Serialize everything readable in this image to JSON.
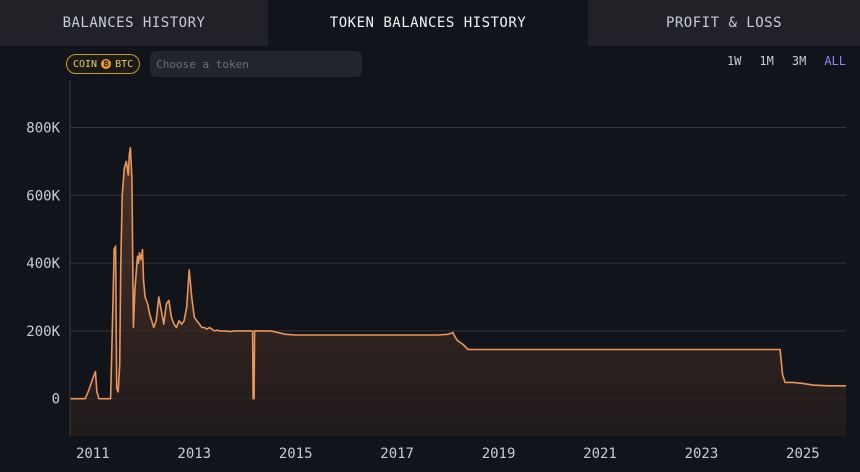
{
  "tabs": [
    {
      "label": "BALANCES HISTORY"
    },
    {
      "label": "TOKEN BALANCES HISTORY"
    },
    {
      "label": "PROFIT & LOSS"
    }
  ],
  "filter": {
    "pill_coin": "COIN",
    "pill_token": "BTC",
    "token_placeholder": "Choose a token"
  },
  "ranges": [
    "1W",
    "1M",
    "3M",
    "ALL"
  ],
  "active_range": "ALL",
  "colors": {
    "line": "#e8965a",
    "fill_top": "#5a3a2a",
    "grid": "#34363d",
    "active_range": "#8e86f5"
  },
  "chart_data": {
    "type": "area",
    "title": "",
    "xlabel": "",
    "ylabel": "",
    "x_ticks": [
      "2011",
      "2013",
      "2015",
      "2017",
      "2019",
      "2021",
      "2023",
      "2025"
    ],
    "y_ticks": [
      "0",
      "200K",
      "400K",
      "600K",
      "800K"
    ],
    "y_tick_values": [
      0,
      200000,
      400000,
      600000,
      800000
    ],
    "xlim": [
      2010.55,
      2025.85
    ],
    "ylim": [
      -110000,
      940000
    ],
    "grid": true,
    "series": [
      {
        "x": [
          2010.55,
          2010.85,
          2010.92,
          2011.0,
          2011.05,
          2011.08,
          2011.12,
          2011.14,
          2011.2,
          2011.35,
          2011.4,
          2011.42,
          2011.45,
          2011.47,
          2011.5,
          2011.53,
          2011.55,
          2011.58,
          2011.62,
          2011.66,
          2011.7,
          2011.72,
          2011.74,
          2011.77,
          2011.8,
          2011.83,
          2011.86,
          2011.88,
          2011.9,
          2011.92,
          2011.95,
          2011.98,
          2012.0,
          2012.03,
          2012.08,
          2012.12,
          2012.16,
          2012.2,
          2012.25,
          2012.3,
          2012.35,
          2012.4,
          2012.45,
          2012.5,
          2012.55,
          2012.6,
          2012.65,
          2012.7,
          2012.75,
          2012.8,
          2012.85,
          2012.9,
          2012.95,
          2013.0,
          2013.05,
          2013.1,
          2013.15,
          2013.2,
          2013.25,
          2013.3,
          2013.35,
          2013.4,
          2013.45,
          2013.5,
          2013.6,
          2013.7,
          2013.8,
          2013.9,
          2014.0,
          2014.05,
          2014.15,
          2014.16,
          2014.18,
          2014.19,
          2014.5,
          2014.8,
          2015.0,
          2016.0,
          2017.0,
          2017.5,
          2017.8,
          2018.0,
          2018.1,
          2018.15,
          2018.2,
          2018.3,
          2018.4,
          2018.5,
          2018.6,
          2019.0,
          2020.0,
          2021.0,
          2022.0,
          2023.0,
          2024.0,
          2024.55,
          2024.6,
          2024.65,
          2024.8,
          2025.0,
          2025.2,
          2025.5,
          2025.85
        ],
        "y": [
          0,
          0,
          25000,
          60000,
          80000,
          20000,
          0,
          0,
          0,
          0,
          300000,
          440000,
          450000,
          30000,
          20000,
          100000,
          380000,
          600000,
          680000,
          700000,
          660000,
          720000,
          740000,
          650000,
          210000,
          320000,
          380000,
          420000,
          400000,
          430000,
          410000,
          440000,
          350000,
          300000,
          280000,
          250000,
          230000,
          210000,
          230000,
          300000,
          260000,
          220000,
          280000,
          290000,
          240000,
          220000,
          210000,
          230000,
          220000,
          230000,
          270000,
          380000,
          300000,
          240000,
          230000,
          220000,
          210000,
          210000,
          205000,
          210000,
          205000,
          200000,
          202000,
          200000,
          200000,
          198000,
          200000,
          200000,
          200000,
          200000,
          200000,
          0,
          0,
          200000,
          200000,
          190000,
          188000,
          188000,
          188000,
          188000,
          188000,
          190000,
          195000,
          180000,
          170000,
          160000,
          145000,
          145000,
          145000,
          145000,
          145000,
          145000,
          145000,
          145000,
          145000,
          145000,
          70000,
          48000,
          48000,
          45000,
          40000,
          38000,
          38000
        ]
      }
    ]
  }
}
